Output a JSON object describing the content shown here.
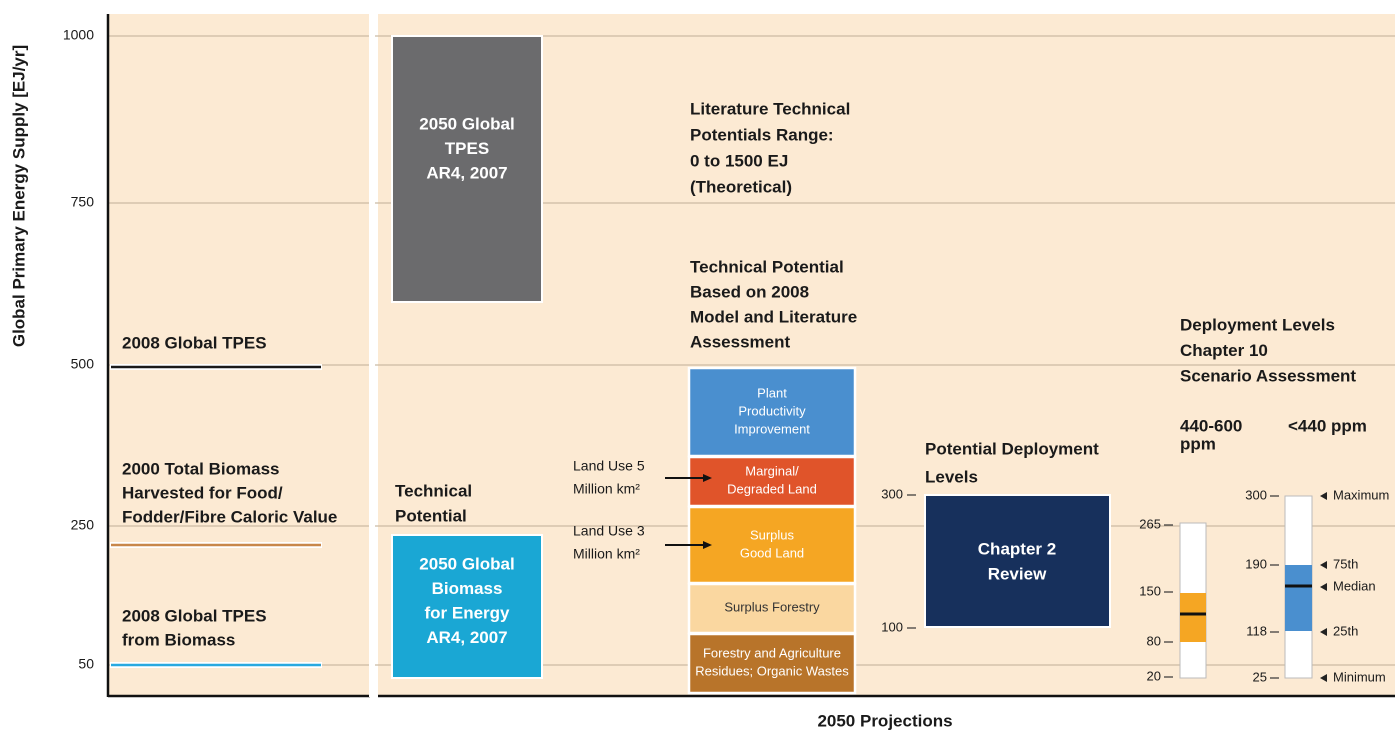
{
  "y_axis": {
    "title": "Global Primary Energy Supply [EJ/yr]",
    "ticks": [
      "1000",
      "750",
      "500",
      "250",
      "50"
    ]
  },
  "x_axis_title": "2050 Projections",
  "reference_lines": [
    {
      "label": [
        "2008 Global TPES"
      ]
    },
    {
      "label": [
        "2000 Total Biomass",
        "Harvested for Food/",
        "Fodder/Fibre Caloric Value"
      ]
    },
    {
      "label": [
        "2008 Global TPES",
        "from Biomass"
      ]
    }
  ],
  "tpes_box": [
    "2050 Global",
    "TPES",
    "AR4, 2007"
  ],
  "literature_range": [
    "Literature Technical",
    "Potentials Range:",
    "0 to 1500 EJ",
    "(Theoretical)"
  ],
  "technical_potential_heading": [
    "Technical Potential",
    "Based on 2008",
    "Model and Literature",
    "Assessment"
  ],
  "stack": [
    [
      "Plant",
      "Productivity",
      "Improvement"
    ],
    [
      "Marginal/",
      "Degraded Land"
    ],
    [
      "Surplus",
      "Good Land"
    ],
    [
      "Surplus Forestry"
    ],
    [
      "Forestry and Agriculture",
      "Residues; Organic Wastes"
    ]
  ],
  "land_use": [
    [
      "Land Use 5",
      "Million km²"
    ],
    [
      "Land Use 3",
      "Million km²"
    ]
  ],
  "technical_potential_label": [
    "Technical",
    "Potential"
  ],
  "biomass_box": [
    "2050 Global",
    "Biomass",
    "for Energy",
    "AR4, 2007"
  ],
  "deployment_heading": [
    "Potential Deployment",
    "Levels"
  ],
  "chapter2_box": [
    "Chapter 2",
    "Review"
  ],
  "chapter2_ticks": [
    "300",
    "100"
  ],
  "scenario_heading": [
    "Deployment Levels",
    "Chapter 10",
    "Scenario Assessment"
  ],
  "scenarios": [
    {
      "name": [
        "440-600",
        "ppm"
      ],
      "ticks": [
        "265",
        "150",
        "80",
        "20"
      ]
    },
    {
      "name": [
        "<440 ppm"
      ],
      "ticks": [
        "300",
        "190",
        "118",
        "25"
      ],
      "markers": [
        "Maximum",
        "75th",
        "Median",
        "25th",
        "Minimum"
      ]
    }
  ]
}
